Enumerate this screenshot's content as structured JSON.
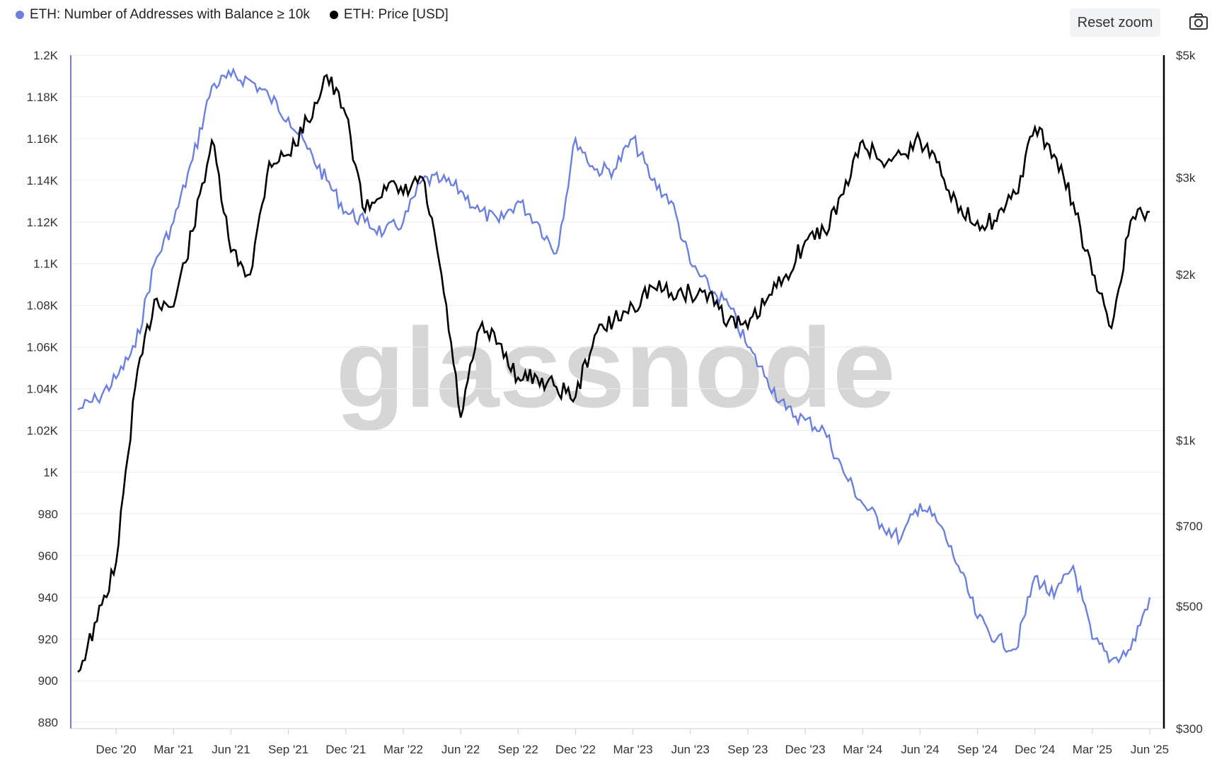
{
  "legend": {
    "addresses_label": "ETH: Number of Addresses with Balance ≥ 10k",
    "price_label": "ETH: Price [USD]"
  },
  "toolbar": {
    "reset_label": "Reset zoom"
  },
  "icons": {
    "camera": "camera-icon"
  },
  "watermark": "glassnode",
  "colors": {
    "addresses": "#6b7fe0",
    "price": "#000000",
    "grid": "#ececec"
  },
  "chart_data": {
    "type": "line",
    "x_ticks": [
      "Dec '20",
      "Mar '21",
      "Jun '21",
      "Sep '21",
      "Dec '21",
      "Mar '22",
      "Jun '22",
      "Sep '22",
      "Dec '22",
      "Mar '23",
      "Jun '23",
      "Sep '23",
      "Dec '23",
      "Mar '24",
      "Jun '24",
      "Sep '24",
      "Dec '24",
      "Mar '25",
      "Jun '25"
    ],
    "y_left_ticks": [
      "1.2K",
      "1.18K",
      "1.16K",
      "1.14K",
      "1.12K",
      "1.1K",
      "1.08K",
      "1.06K",
      "1.04K",
      "1.02K",
      "1K",
      "980",
      "960",
      "940",
      "920",
      "900",
      "880"
    ],
    "y_left_range": [
      877,
      1200
    ],
    "y_right_ticks": [
      "$5k",
      "$3k",
      "$2k",
      "$1k",
      "$700",
      "$500",
      "$300"
    ],
    "y_right_scale": "log",
    "y_right_range": [
      300,
      5000
    ],
    "x": [
      "2020-10",
      "2020-11",
      "2020-12",
      "2021-01",
      "2021-02",
      "2021-03",
      "2021-04",
      "2021-05",
      "2021-06",
      "2021-07",
      "2021-08",
      "2021-09",
      "2021-10",
      "2021-11",
      "2021-12",
      "2022-01",
      "2022-02",
      "2022-03",
      "2022-04",
      "2022-05",
      "2022-06",
      "2022-07",
      "2022-08",
      "2022-09",
      "2022-10",
      "2022-11",
      "2022-12",
      "2023-01",
      "2023-02",
      "2023-03",
      "2023-04",
      "2023-05",
      "2023-06",
      "2023-07",
      "2023-08",
      "2023-09",
      "2023-10",
      "2023-11",
      "2023-12",
      "2024-01",
      "2024-02",
      "2024-03",
      "2024-04",
      "2024-05",
      "2024-06",
      "2024-07",
      "2024-08",
      "2024-09",
      "2024-10",
      "2024-11",
      "2024-12",
      "2025-01",
      "2025-02",
      "2025-03",
      "2025-04",
      "2025-05",
      "2025-06"
    ],
    "series": [
      {
        "name": "ETH: Number of Addresses with Balance ≥ 10k",
        "axis": "left",
        "values": [
          1030,
          1035,
          1045,
          1060,
          1100,
          1120,
          1150,
          1185,
          1190,
          1188,
          1180,
          1170,
          1155,
          1140,
          1125,
          1120,
          1115,
          1120,
          1140,
          1140,
          1135,
          1125,
          1120,
          1130,
          1120,
          1105,
          1160,
          1145,
          1145,
          1160,
          1140,
          1130,
          1100,
          1088,
          1080,
          1060,
          1045,
          1030,
          1025,
          1020,
          1000,
          985,
          975,
          968,
          985,
          975,
          955,
          930,
          920,
          915,
          950,
          940,
          955,
          920,
          910,
          915,
          940
        ]
      },
      {
        "name": "ETH: Price [USD]",
        "axis": "right",
        "values": [
          380,
          470,
          600,
          1250,
          1800,
          1750,
          2400,
          3500,
          2200,
          2000,
          3200,
          3300,
          3800,
          4600,
          3900,
          2600,
          2900,
          2800,
          3000,
          2000,
          1100,
          1600,
          1500,
          1300,
          1300,
          1250,
          1200,
          1550,
          1650,
          1750,
          1900,
          1850,
          1850,
          1850,
          1650,
          1600,
          1800,
          2000,
          2300,
          2400,
          2800,
          3500,
          3200,
          3300,
          3500,
          3200,
          2600,
          2500,
          2500,
          2800,
          3700,
          3300,
          2700,
          2000,
          1600,
          2500,
          2600
        ]
      }
    ]
  }
}
